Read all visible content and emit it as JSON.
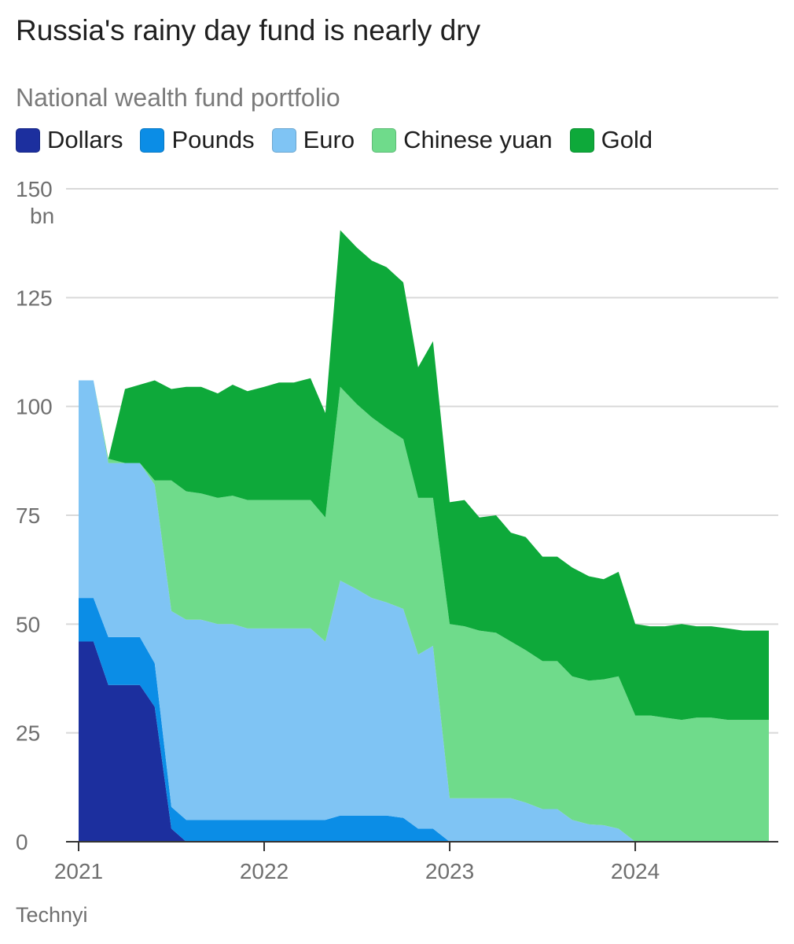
{
  "title": "Russia's rainy day fund is nearly dry",
  "subtitle": "National wealth fund portfolio",
  "source": "Technyi",
  "chart_data": {
    "type": "area",
    "stacked": true,
    "y_unit": "bn",
    "ylim": [
      0,
      150
    ],
    "y_ticks": [
      0,
      25,
      50,
      75,
      100,
      125,
      150
    ],
    "y_tick_labels": [
      "0",
      "25",
      "50",
      "75",
      "100",
      "125",
      "150"
    ],
    "xlim": [
      2021.0,
      2024.72
    ],
    "x_ticks": [
      2021,
      2022,
      2023,
      2024
    ],
    "x_tick_labels": [
      "2021",
      "2022",
      "2023",
      "2024"
    ],
    "grid": true,
    "legend_position": "top",
    "x": [
      2021.0,
      2021.08,
      2021.16,
      2021.25,
      2021.33,
      2021.41,
      2021.5,
      2021.58,
      2021.66,
      2021.75,
      2021.83,
      2021.91,
      2022.0,
      2022.08,
      2022.16,
      2022.25,
      2022.33,
      2022.41,
      2022.5,
      2022.58,
      2022.66,
      2022.75,
      2022.83,
      2022.91,
      2023.0,
      2023.08,
      2023.16,
      2023.25,
      2023.33,
      2023.41,
      2023.5,
      2023.58,
      2023.66,
      2023.75,
      2023.83,
      2023.91,
      2024.0,
      2024.08,
      2024.16,
      2024.25,
      2024.33,
      2024.41,
      2024.5,
      2024.58,
      2024.66,
      2024.72
    ],
    "series": [
      {
        "name": "Dollars",
        "color": "#1c2f9e",
        "values": [
          46,
          46,
          36,
          36,
          36,
          31,
          3,
          0,
          0,
          0,
          0,
          0,
          0,
          0,
          0,
          0,
          0,
          0,
          0,
          0,
          0,
          0,
          0,
          0,
          0,
          0,
          0,
          0,
          0,
          0,
          0,
          0,
          0,
          0,
          0,
          0,
          0,
          0,
          0,
          0,
          0,
          0,
          0,
          0,
          0,
          0
        ]
      },
      {
        "name": "Pounds",
        "color": "#0b8de6",
        "values": [
          10,
          10,
          11,
          11,
          11,
          10,
          5,
          5,
          5,
          5,
          5,
          5,
          5,
          5,
          5,
          5,
          5,
          6,
          6,
          6,
          6,
          5.5,
          3,
          3,
          0,
          0,
          0,
          0,
          0,
          0,
          0,
          0,
          0,
          0,
          0,
          0,
          0,
          0,
          0,
          0,
          0,
          0,
          0,
          0,
          0,
          0
        ]
      },
      {
        "name": "Euro",
        "color": "#7fc4f4",
        "values": [
          50,
          50,
          40,
          40,
          40,
          41,
          45,
          46,
          46,
          45,
          45,
          44,
          44,
          44,
          44,
          44,
          41,
          54,
          52,
          50,
          49,
          48,
          40,
          42,
          10,
          10,
          10,
          10,
          10,
          9,
          7.5,
          7.5,
          5,
          4,
          3.8,
          3,
          0,
          0,
          0,
          0,
          0,
          0,
          0,
          0,
          0,
          0
        ]
      },
      {
        "name": "Chinese yuan",
        "color": "#6fdb8b",
        "values": [
          0,
          0,
          1,
          0,
          0,
          1,
          30,
          29.5,
          29,
          29,
          29.5,
          29.5,
          29.5,
          29.5,
          29.5,
          29.5,
          28.5,
          44.5,
          42.5,
          41.5,
          40,
          39,
          36,
          34,
          40,
          39.5,
          38.5,
          38,
          36,
          35,
          34,
          34,
          33,
          33,
          33.5,
          35,
          29,
          29,
          28.5,
          28,
          28.5,
          28.5,
          28,
          28,
          28,
          28
        ]
      },
      {
        "name": "Gold",
        "color": "#0ea93a",
        "values": [
          0,
          0,
          0,
          17,
          18,
          23,
          21,
          24,
          24.5,
          24,
          25.5,
          25,
          26,
          27,
          27,
          28,
          24,
          36,
          36,
          36,
          37,
          36,
          30,
          36,
          28,
          29,
          26,
          27,
          25,
          26,
          24,
          24,
          25,
          24,
          23,
          24,
          21,
          20.5,
          21,
          22,
          21,
          21,
          21,
          20.5,
          20.5,
          20.5
        ]
      }
    ]
  }
}
